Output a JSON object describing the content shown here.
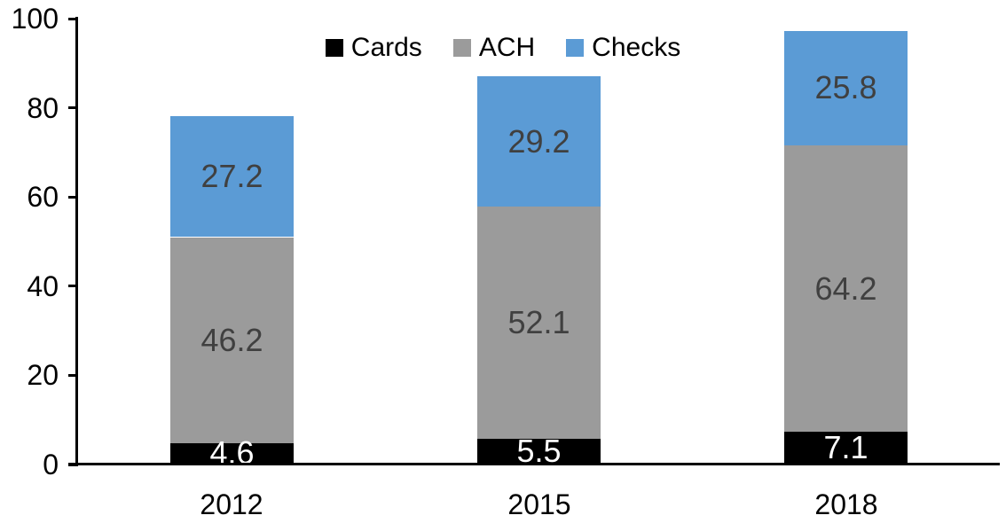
{
  "chart_data": {
    "type": "bar",
    "stacked": true,
    "title": "",
    "categories": [
      "2012",
      "2015",
      "2018"
    ],
    "series": [
      {
        "name": "Cards",
        "color": "#000000",
        "label_color": "#FFFFFF",
        "values": [
          4.6,
          5.5,
          7.1
        ]
      },
      {
        "name": "ACH",
        "color": "#9B9B9B",
        "label_color": "#404040",
        "values": [
          46.2,
          52.1,
          64.2
        ]
      },
      {
        "name": "Checks",
        "color": "#5B9BD5",
        "label_color": "#404040",
        "values": [
          27.2,
          29.2,
          25.8
        ]
      }
    ],
    "xlabel": "",
    "ylabel": "",
    "ylim": [
      0,
      100
    ],
    "yticks": [
      0,
      20,
      40,
      60,
      80,
      100
    ],
    "legend_position": "top",
    "grid": false,
    "axis_color": "#000000",
    "background": "#FFFFFF"
  }
}
